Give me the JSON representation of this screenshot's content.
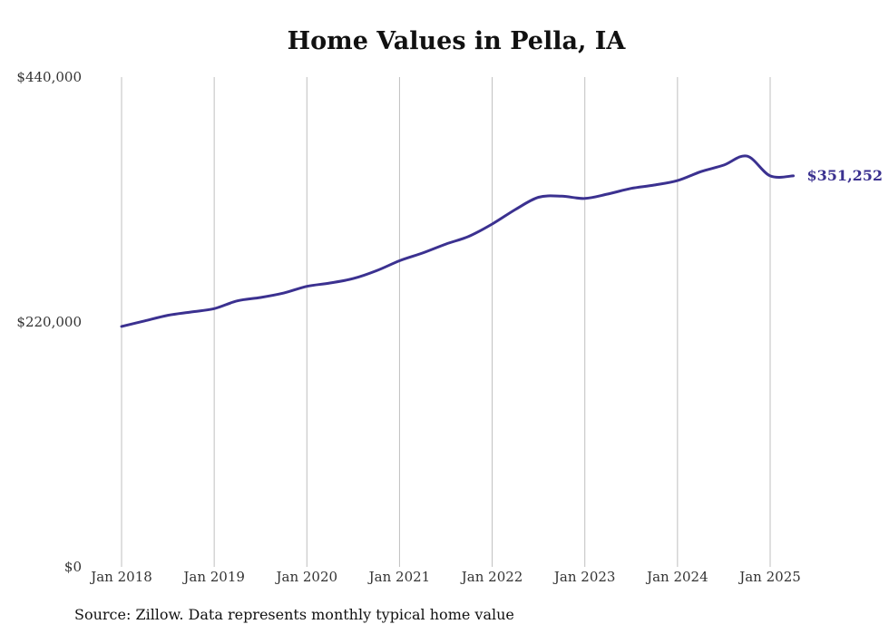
{
  "chart_data": {
    "type": "line",
    "title": "Home Values in Pella, IA",
    "xlabel": "",
    "ylabel": "",
    "ylim": [
      0,
      440000
    ],
    "yticks": [
      {
        "value": 0,
        "label": "$0"
      },
      {
        "value": 220000,
        "label": "$220,000"
      },
      {
        "value": 440000,
        "label": "$440,000"
      }
    ],
    "xticks": [
      {
        "value": 2018.0,
        "label": "Jan 2018"
      },
      {
        "value": 2019.0,
        "label": "Jan 2019"
      },
      {
        "value": 2020.0,
        "label": "Jan 2020"
      },
      {
        "value": 2021.0,
        "label": "Jan 2021"
      },
      {
        "value": 2022.0,
        "label": "Jan 2022"
      },
      {
        "value": 2023.0,
        "label": "Jan 2023"
      },
      {
        "value": 2024.0,
        "label": "Jan 2024"
      },
      {
        "value": 2025.0,
        "label": "Jan 2025"
      }
    ],
    "xlim": [
      2018.0,
      2025.25
    ],
    "grid": "vertical",
    "line_color": "#3b3190",
    "series": [
      {
        "x": [
          2018.0,
          2018.25,
          2018.5,
          2018.75,
          2019.0,
          2019.25,
          2019.5,
          2019.75,
          2020.0,
          2020.25,
          2020.5,
          2020.75,
          2021.0,
          2021.25,
          2021.5,
          2021.75,
          2022.0,
          2022.25,
          2022.5,
          2022.75,
          2023.0,
          2023.25,
          2023.5,
          2023.75,
          2024.0,
          2024.25,
          2024.5,
          2024.75,
          2025.0,
          2025.25
        ],
        "y": [
          216000,
          221000,
          226000,
          229000,
          232000,
          239000,
          242000,
          246000,
          252000,
          255000,
          259000,
          266000,
          275000,
          282000,
          290000,
          297000,
          308000,
          321000,
          332000,
          333000,
          331000,
          335000,
          340000,
          343000,
          347000,
          355000,
          361000,
          369000,
          351252,
          351252
        ],
        "end_label": "$351,252"
      }
    ],
    "source": "Source: Zillow. Data represents monthly typical home value"
  }
}
